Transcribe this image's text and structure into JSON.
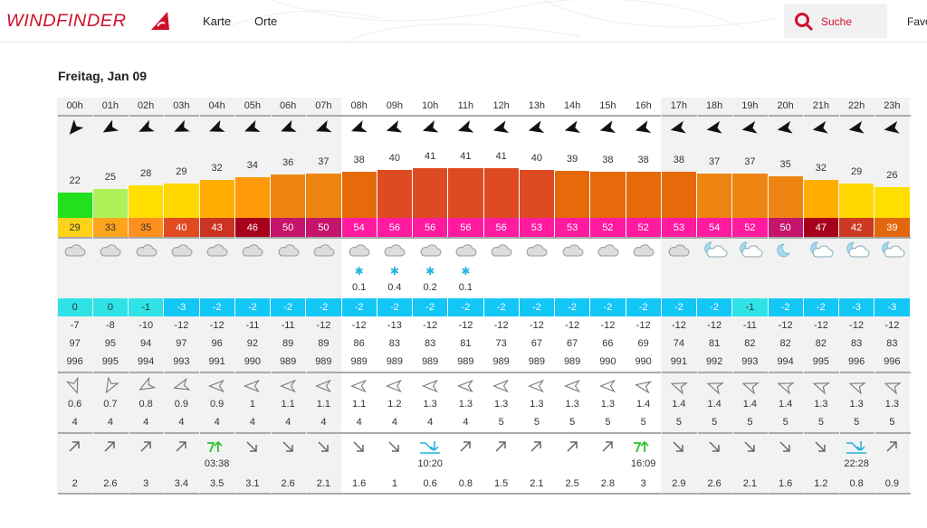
{
  "nav": {
    "logo": "WINDFINDER",
    "links": [
      "Karte",
      "Orte"
    ],
    "search_label": "Suche",
    "favorites_label": "Favo"
  },
  "day_title": "Freitag, Jan 09",
  "hours": [
    "00h",
    "01h",
    "02h",
    "03h",
    "04h",
    "05h",
    "06h",
    "07h",
    "08h",
    "09h",
    "10h",
    "11h",
    "12h",
    "13h",
    "14h",
    "15h",
    "16h",
    "17h",
    "18h",
    "19h",
    "20h",
    "21h",
    "22h",
    "23h"
  ],
  "night": [
    true,
    true,
    true,
    true,
    true,
    true,
    true,
    true,
    false,
    false,
    false,
    false,
    false,
    false,
    false,
    false,
    false,
    true,
    true,
    true,
    true,
    true,
    true,
    true
  ],
  "wind_dir_deg": [
    140,
    120,
    115,
    115,
    112,
    112,
    112,
    110,
    110,
    108,
    108,
    108,
    105,
    105,
    105,
    105,
    105,
    102,
    100,
    100,
    100,
    100,
    100,
    100
  ],
  "wind_speed": [
    "22",
    "25",
    "28",
    "29",
    "32",
    "34",
    "36",
    "37",
    "38",
    "40",
    "41",
    "41",
    "41",
    "40",
    "39",
    "38",
    "38",
    "38",
    "37",
    "37",
    "35",
    "32",
    "29",
    "26"
  ],
  "wind_gusts": [
    "29",
    "33",
    "35",
    "40",
    "43",
    "46",
    "50",
    "50",
    "54",
    "56",
    "56",
    "56",
    "56",
    "53",
    "53",
    "52",
    "52",
    "53",
    "54",
    "52",
    "50",
    "47",
    "42",
    "39"
  ],
  "weather": [
    "cloud",
    "cloud",
    "cloud",
    "cloud",
    "cloud",
    "cloud",
    "cloud",
    "cloud",
    "cloud",
    "cloud",
    "cloud",
    "cloud",
    "cloud",
    "cloud",
    "cloud",
    "cloud",
    "cloud",
    "cloud",
    "partly-cloudy-night",
    "moon-cloud",
    "moon",
    "moon-cloud",
    "moon-cloud",
    "moon-cloud"
  ],
  "precip": [
    "",
    "",
    "",
    "",
    "",
    "",
    "",
    "",
    "0.1",
    "0.4",
    "0.2",
    "0.1",
    "",
    "",
    "",
    "",
    "",
    "",
    "",
    "",
    "",
    "",
    "",
    ""
  ],
  "temperature": [
    "0",
    "0",
    "-1",
    "-3",
    "-2",
    "-2",
    "-2",
    "-2",
    "-2",
    "-2",
    "-2",
    "-2",
    "-2",
    "-2",
    "-2",
    "-2",
    "-2",
    "-2",
    "-2",
    "-1",
    "-2",
    "-2",
    "-3",
    "-3"
  ],
  "feels_like": [
    "-7",
    "-8",
    "-10",
    "-12",
    "-12",
    "-11",
    "-11",
    "-12",
    "-12",
    "-13",
    "-12",
    "-12",
    "-12",
    "-12",
    "-12",
    "-12",
    "-12",
    "-12",
    "-12",
    "-11",
    "-12",
    "-12",
    "-12",
    "-12"
  ],
  "humidity": [
    "97",
    "95",
    "94",
    "97",
    "96",
    "92",
    "89",
    "89",
    "86",
    "83",
    "83",
    "81",
    "73",
    "67",
    "67",
    "66",
    "69",
    "74",
    "81",
    "82",
    "82",
    "82",
    "83",
    "83"
  ],
  "pressure": [
    "996",
    "995",
    "994",
    "993",
    "991",
    "990",
    "989",
    "989",
    "989",
    "989",
    "989",
    "989",
    "989",
    "989",
    "989",
    "990",
    "990",
    "991",
    "992",
    "993",
    "994",
    "995",
    "996",
    "996"
  ],
  "wave_dir_deg": [
    -110,
    -60,
    -30,
    -15,
    0,
    0,
    0,
    0,
    0,
    0,
    0,
    0,
    0,
    0,
    0,
    0,
    10,
    20,
    20,
    20,
    20,
    20,
    20,
    20
  ],
  "wave_height": [
    "0.6",
    "0.7",
    "0.8",
    "0.9",
    "0.9",
    "1",
    "1.1",
    "1.1",
    "1.1",
    "1.2",
    "1.3",
    "1.3",
    "1.3",
    "1.3",
    "1.3",
    "1.3",
    "1.4",
    "1.4",
    "1.4",
    "1.4",
    "1.4",
    "1.3",
    "1.3",
    "1.3"
  ],
  "wave_period": [
    "4",
    "4",
    "4",
    "4",
    "4",
    "4",
    "4",
    "4",
    "4",
    "4",
    "4",
    "4",
    "5",
    "5",
    "5",
    "5",
    "5",
    "5",
    "5",
    "5",
    "5",
    "5",
    "5",
    "5"
  ],
  "tide_state": [
    "rising",
    "rising",
    "rising",
    "rising",
    "high",
    "falling",
    "falling",
    "falling",
    "falling",
    "falling",
    "low",
    "rising",
    "rising",
    "rising",
    "rising",
    "rising",
    "high",
    "falling",
    "falling",
    "falling",
    "falling",
    "falling",
    "low",
    "rising"
  ],
  "tide_time": [
    "",
    "",
    "",
    "",
    "03:38",
    "",
    "",
    "",
    "",
    "",
    "10:20",
    "",
    "",
    "",
    "",
    "",
    "16:09",
    "",
    "",
    "",
    "",
    "",
    "22:28",
    ""
  ],
  "tide_height": [
    "2",
    "2.6",
    "3",
    "3.4",
    "3.5",
    "3.1",
    "2.6",
    "2.1",
    "1.6",
    "1",
    "0.6",
    "0.8",
    "1.5",
    "2.1",
    "2.5",
    "2.8",
    "3",
    "2.9",
    "2.6",
    "2.1",
    "1.6",
    "1.2",
    "0.8",
    "0.9"
  ],
  "colors": {
    "brand": "#d0102a",
    "tide_high": "#2ec22e",
    "tide_low": "#1fb3d6"
  }
}
